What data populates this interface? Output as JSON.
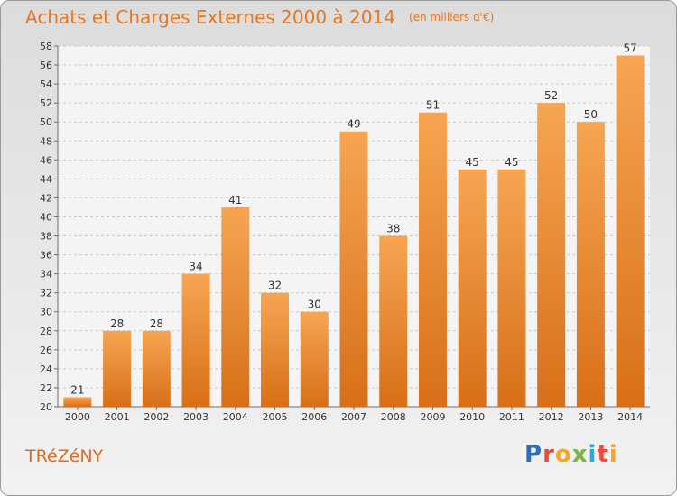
{
  "header": {
    "title": "Achats et Charges Externes 2000 à 2014",
    "unit": "(en milliers d'€)"
  },
  "footer": {
    "commune": "TRéZéNY",
    "logo_letters": [
      {
        "ch": "P",
        "color": "#2f6fb6"
      },
      {
        "ch": "r",
        "color": "#e94e3c"
      },
      {
        "ch": "o",
        "color": "#f5a623"
      },
      {
        "ch": "x",
        "color": "#7ab83c"
      },
      {
        "ch": "i",
        "color": "#2fa7d8"
      },
      {
        "ch": "t",
        "color": "#e94e3c"
      },
      {
        "ch": "i",
        "color": "#f5a623"
      }
    ]
  },
  "colors": {
    "bar_light": "#f6a552",
    "bar_dark": "#d86f18",
    "grid": "#c8c8c8",
    "axis": "#6e6e6e",
    "text": "#333333"
  },
  "chart_data": {
    "type": "bar",
    "categories": [
      "2000",
      "2001",
      "2002",
      "2003",
      "2004",
      "2005",
      "2006",
      "2007",
      "2008",
      "2009",
      "2010",
      "2011",
      "2012",
      "2013",
      "2014"
    ],
    "values": [
      21,
      28,
      28,
      34,
      41,
      32,
      30,
      49,
      38,
      51,
      45,
      45,
      52,
      50,
      57
    ],
    "ylim": [
      20,
      58
    ],
    "ytick_step": 2,
    "grid": true,
    "data_labels": true
  }
}
